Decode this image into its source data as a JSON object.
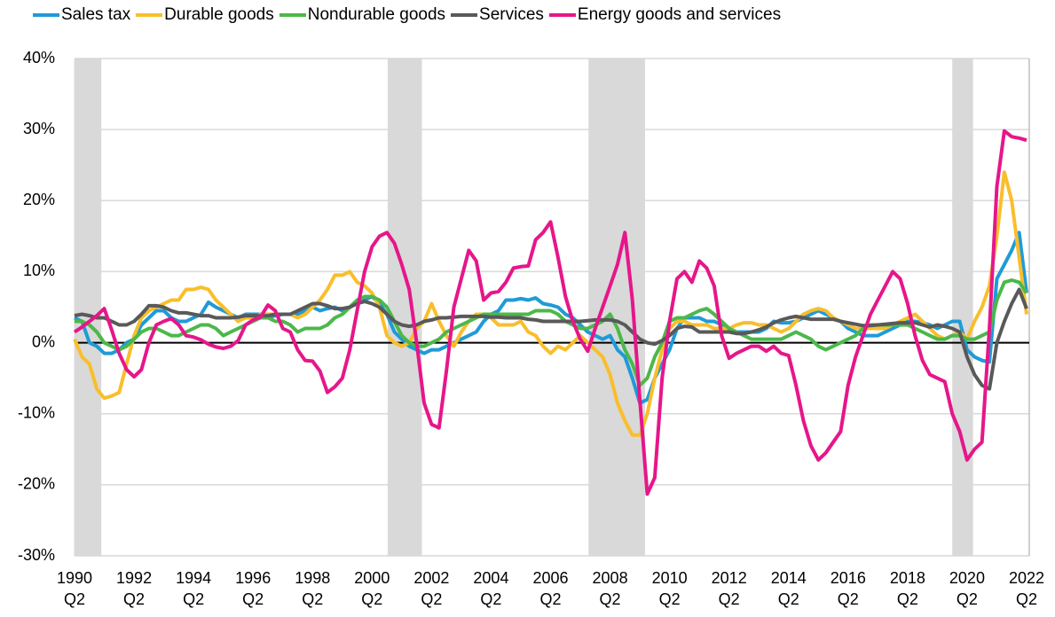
{
  "chart_data": {
    "type": "line",
    "categories": [
      "1990\nQ2",
      null,
      null,
      null,
      null,
      null,
      null,
      null,
      "1992\nQ2",
      null,
      null,
      null,
      null,
      null,
      null,
      null,
      "1994\nQ2",
      null,
      null,
      null,
      null,
      null,
      null,
      null,
      "1996\nQ2",
      null,
      null,
      null,
      null,
      null,
      null,
      null,
      "1998\nQ2",
      null,
      null,
      null,
      null,
      null,
      null,
      null,
      "2000\nQ2",
      null,
      null,
      null,
      null,
      null,
      null,
      null,
      "2002\nQ2",
      null,
      null,
      null,
      null,
      null,
      null,
      null,
      "2004\nQ2",
      null,
      null,
      null,
      null,
      null,
      null,
      null,
      "2006\nQ2",
      null,
      null,
      null,
      null,
      null,
      null,
      null,
      "2008\nQ2",
      null,
      null,
      null,
      null,
      null,
      null,
      null,
      "2010\nQ2",
      null,
      null,
      null,
      null,
      null,
      null,
      null,
      "2012\nQ2",
      null,
      null,
      null,
      null,
      null,
      null,
      null,
      "2014\nQ2",
      null,
      null,
      null,
      null,
      null,
      null,
      null,
      "2016\nQ2",
      null,
      null,
      null,
      null,
      null,
      null,
      null,
      "2018\nQ2",
      null,
      null,
      null,
      null,
      null,
      null,
      null,
      "2020\nQ2",
      null,
      null,
      null,
      null,
      null,
      null,
      null,
      "2022\nQ2"
    ],
    "series": [
      {
        "name": "Sales tax",
        "color": "#1f9bd7",
        "values": [
          3.5,
          3,
          0,
          -0.5,
          -1.5,
          -1.5,
          -1,
          0,
          0.5,
          2.5,
          3.5,
          4.5,
          4.5,
          3.5,
          3,
          3,
          3.5,
          4,
          5.7,
          5,
          4.5,
          4,
          3.5,
          4,
          4,
          4,
          3.5,
          3.8,
          4,
          4,
          4,
          4.5,
          5,
          4.5,
          4.8,
          5,
          4.5,
          5,
          5.5,
          6,
          6.5,
          5.5,
          4,
          1.5,
          0.5,
          -0.5,
          -1,
          -1.5,
          -1,
          -1,
          -0.5,
          0,
          0.5,
          1,
          1.5,
          3,
          4,
          4.5,
          6,
          6,
          6.2,
          6,
          6.3,
          5.5,
          5.3,
          5,
          4,
          3.5,
          2.5,
          1.5,
          1,
          0.5,
          1,
          -1,
          -2,
          -5,
          -8.5,
          -8,
          -5,
          -3,
          -1,
          2,
          3.5,
          3.5,
          3.5,
          3,
          3,
          2.5,
          2,
          1.5,
          1.5,
          1.5,
          1.5,
          2,
          3,
          2.8,
          2.8,
          3,
          3.5,
          4,
          4.5,
          4,
          3.5,
          3,
          2,
          1.5,
          1,
          1,
          1,
          1.5,
          2,
          2.5,
          3,
          3,
          2.8,
          2.5,
          2,
          2.5,
          3,
          3,
          -1,
          -2,
          -2.5,
          -2.7,
          9,
          11,
          13,
          15.5,
          7
        ]
      },
      {
        "name": "Durable goods",
        "color": "#f9be2b",
        "values": [
          0.5,
          -2,
          -3,
          -6.5,
          -7.8,
          -7.5,
          -7,
          -3,
          1,
          3.5,
          4.5,
          5,
          5.5,
          6,
          6,
          7.5,
          7.5,
          7.8,
          7.5,
          6,
          5,
          4,
          3,
          3.5,
          3.5,
          4,
          4,
          4,
          4,
          4,
          3.5,
          4,
          5,
          6,
          7.5,
          9.5,
          9.5,
          10,
          8.5,
          8,
          7,
          5,
          1,
          0,
          -0.5,
          0,
          2,
          3,
          5.5,
          3,
          1,
          -0.5,
          1.5,
          3,
          4,
          4,
          3.5,
          2.5,
          2.5,
          2.5,
          3,
          1.5,
          1,
          -0.5,
          -1.5,
          -0.5,
          -1,
          0,
          1,
          0,
          -1,
          -2,
          -4.5,
          -8.5,
          -11,
          -13,
          -13,
          -10,
          -5,
          -1,
          2,
          3,
          3,
          2.5,
          2.5,
          2.5,
          2,
          2,
          2,
          2.5,
          2.8,
          2.8,
          2.5,
          2.5,
          2,
          1.5,
          2,
          3,
          4,
          4.5,
          4.8,
          4.5,
          3.5,
          3,
          2.5,
          2,
          2,
          2,
          2,
          2,
          2.5,
          3,
          3.5,
          4,
          3,
          2,
          1,
          0.5,
          1,
          1.5,
          0.5,
          3,
          5,
          8,
          15,
          24,
          20,
          12,
          4
        ]
      },
      {
        "name": "Nondurable goods",
        "color": "#4cb84a",
        "values": [
          3,
          3,
          2.5,
          1.5,
          0,
          -0.5,
          -1,
          -0.5,
          0.5,
          1.5,
          2,
          2,
          1.5,
          1,
          1,
          1.5,
          2,
          2.5,
          2.5,
          2,
          1,
          1.5,
          2,
          2.5,
          3,
          3.5,
          3.5,
          3,
          3,
          2.5,
          1.5,
          2,
          2,
          2,
          2.5,
          3.5,
          4,
          5,
          6,
          6.5,
          6.5,
          6,
          5,
          3,
          1,
          0,
          -0.5,
          -0.5,
          0,
          0.5,
          1.5,
          2,
          2.5,
          3,
          3.5,
          4,
          4,
          4,
          4,
          4,
          4,
          4,
          4.5,
          4.5,
          4.5,
          4,
          3,
          2.5,
          2,
          2,
          2.5,
          3,
          4,
          2,
          -1,
          -3,
          -6,
          -5,
          -2,
          0,
          3,
          3.5,
          3.5,
          4,
          4.5,
          4.8,
          4,
          3,
          2,
          1.5,
          1,
          0.5,
          0.5,
          0.5,
          0.5,
          0.5,
          1,
          1.5,
          1,
          0.5,
          -0.5,
          -1,
          -0.5,
          0,
          0.5,
          1,
          2,
          2.5,
          2.5,
          2.5,
          2.5,
          2.5,
          2.5,
          2,
          1.5,
          1,
          0.5,
          0.5,
          1,
          1,
          0.5,
          0.5,
          1,
          1.5,
          6,
          8.5,
          8.8,
          8.5,
          7
        ]
      },
      {
        "name": "Services",
        "color": "#595959",
        "values": [
          3.8,
          4,
          3.8,
          3.5,
          3.5,
          3,
          2.5,
          2.5,
          3,
          4,
          5.2,
          5.2,
          5,
          4.5,
          4.2,
          4.2,
          4,
          3.8,
          3.8,
          3.5,
          3.5,
          3.5,
          3.6,
          3.8,
          3.8,
          3.8,
          3.8,
          4,
          4,
          4,
          4.5,
          5,
          5.5,
          5.5,
          5.2,
          4.8,
          4.8,
          5,
          5.5,
          5.8,
          5.5,
          5,
          4,
          3,
          2.5,
          2.3,
          2.5,
          3,
          3.2,
          3.5,
          3.5,
          3.6,
          3.7,
          3.7,
          3.7,
          3.7,
          3.6,
          3.6,
          3.5,
          3.5,
          3.5,
          3.3,
          3.2,
          3,
          3,
          3,
          3,
          3,
          3,
          3.1,
          3.2,
          3.2,
          3.2,
          3,
          2.5,
          1.5,
          0.5,
          0,
          -0.2,
          0.3,
          1,
          2,
          2.3,
          2.2,
          1.5,
          1.5,
          1.5,
          1.5,
          1.5,
          1.3,
          1.3,
          1.5,
          1.8,
          2.2,
          2.8,
          3.2,
          3.5,
          3.7,
          3.5,
          3.3,
          3.3,
          3.3,
          3.3,
          3,
          2.8,
          2.6,
          2.4,
          2.4,
          2.5,
          2.6,
          2.7,
          2.8,
          2.8,
          2.8,
          2.5,
          2.2,
          2.5,
          2.3,
          2,
          1.5,
          -2,
          -4.5,
          -6,
          -6.5,
          0,
          3,
          5.5,
          7.5,
          4.8
        ]
      },
      {
        "name": "Energy goods and services",
        "color": "#e6168a",
        "values": [
          1.5,
          2.2,
          3,
          3.8,
          4.8,
          1.8,
          -1.5,
          -3.8,
          -4.8,
          -3.8,
          0,
          2.5,
          3,
          3.4,
          2.5,
          1,
          0.8,
          0.4,
          -0.2,
          -0.6,
          -0.8,
          -0.5,
          0.3,
          2.5,
          3.2,
          3.6,
          5.3,
          4.5,
          2,
          1.5,
          -1,
          -2.5,
          -2.6,
          -4,
          -7,
          -6.2,
          -5,
          -1,
          4.5,
          10,
          13.5,
          15,
          15.5,
          14,
          11,
          7.5,
          0,
          -8.5,
          -11.5,
          -12,
          -4,
          5,
          9,
          13,
          11.5,
          6,
          7,
          7.2,
          8.5,
          10.5,
          10.7,
          10.8,
          14.5,
          15.5,
          17,
          12,
          6.5,
          3,
          0.5,
          -1.2,
          2,
          5,
          8,
          11,
          15.5,
          6,
          -8,
          -21.3,
          -19,
          -5,
          3,
          9,
          10,
          8.5,
          11.5,
          10.5,
          8,
          1,
          -2.2,
          -1.5,
          -1,
          -0.5,
          -0.5,
          -1.2,
          -0.5,
          -1.5,
          -1.8,
          -6,
          -11,
          -14.5,
          -16.5,
          -15.5,
          -14,
          -12.5,
          -6,
          -2,
          1,
          4,
          6,
          8,
          10,
          9,
          5.5,
          1,
          -2.5,
          -4.5,
          -5,
          -5.5,
          -10,
          -12.5,
          -16.5,
          -15,
          -14,
          2,
          22,
          29.8,
          29,
          28.8,
          28.5
        ]
      }
    ],
    "ylim": [
      -30,
      40
    ],
    "yticks": [
      {
        "value": -30,
        "label": "-30%"
      },
      {
        "value": -20,
        "label": "-20%"
      },
      {
        "value": -10,
        "label": "-10%"
      },
      {
        "value": 0,
        "label": "0%"
      },
      {
        "value": 10,
        "label": "10%"
      },
      {
        "value": 20,
        "label": "20%"
      },
      {
        "value": 30,
        "label": "30%"
      },
      {
        "value": 40,
        "label": "40%"
      }
    ],
    "grid": true,
    "legend": "top",
    "shaded_spans": [
      [
        0,
        3.6
      ],
      [
        42.1,
        46.7
      ],
      [
        69.1,
        76.7
      ],
      [
        118,
        120.8
      ]
    ],
    "shade_color": "#d9d9d9"
  }
}
